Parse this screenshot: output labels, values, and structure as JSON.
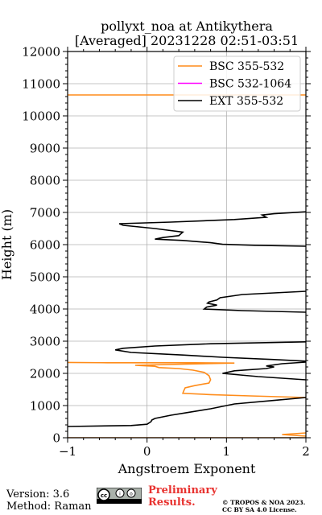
{
  "header": {
    "title_line1": "pollyxt_noa at Antikythera",
    "title_line2": "[Averaged] 20231228 02:51-03:51"
  },
  "footer": {
    "version": "Version: 3.6",
    "method": "Method: Raman",
    "preliminary_line1": "Preliminary",
    "preliminary_line2": "Results.",
    "copyright_line1": "© TROPOS & NOA 2023.",
    "copyright_line2": "CC BY SA 4.0 License.",
    "license_badge": "cc-by-sa-badge"
  },
  "chart_data": {
    "type": "line",
    "title": "pollyxt_noa at Antikythera",
    "subtitle": "[Averaged] 20231228 02:51-03:51",
    "xlabel": "Angstroem Exponent",
    "ylabel": "Height (m)",
    "xlim": [
      -1,
      2
    ],
    "ylim": [
      0,
      12000
    ],
    "xticks": [
      -1,
      0,
      1,
      2
    ],
    "yticks": [
      0,
      1000,
      2000,
      3000,
      4000,
      5000,
      6000,
      7000,
      8000,
      9000,
      10000,
      11000,
      12000
    ],
    "grid": true,
    "legend_position": "top-right",
    "series": [
      {
        "name": "BSC 355-532",
        "color": "#ff8c1a",
        "points": [
          [
            2.0,
            10650
          ],
          [
            -1.0,
            10650
          ],
          null,
          [
            -1.0,
            0
          ],
          [
            2.0,
            0
          ],
          null,
          [
            2.0,
            150
          ],
          [
            1.7,
            100
          ],
          [
            2.0,
            50
          ],
          null,
          [
            2.0,
            1250
          ],
          [
            1.3,
            1300
          ],
          [
            0.8,
            1340
          ],
          [
            0.45,
            1380
          ],
          [
            0.46,
            1450
          ],
          [
            0.48,
            1550
          ],
          [
            0.6,
            1620
          ],
          [
            0.78,
            1700
          ],
          [
            0.8,
            1800
          ],
          [
            0.78,
            1930
          ],
          [
            0.72,
            2030
          ],
          [
            0.58,
            2100
          ],
          [
            0.4,
            2150
          ],
          [
            0.15,
            2180
          ],
          [
            0.1,
            2220
          ],
          [
            -0.15,
            2250
          ],
          [
            0.5,
            2290
          ],
          [
            1.1,
            2320
          ],
          [
            0.6,
            2330
          ],
          [
            -0.5,
            2330
          ],
          [
            -1.0,
            2340
          ]
        ]
      },
      {
        "name": "BSC 532-1064",
        "color": "#ff00ff",
        "points": []
      },
      {
        "name": "EXT 355-532",
        "color": "#000000",
        "points": [
          [
            -1.0,
            350
          ],
          [
            -0.2,
            380
          ],
          [
            0.0,
            420
          ],
          [
            0.05,
            500
          ],
          [
            0.06,
            550
          ],
          [
            0.1,
            600
          ],
          [
            0.3,
            700
          ],
          [
            0.5,
            780
          ],
          [
            0.8,
            900
          ],
          [
            1.1,
            1050
          ],
          [
            1.6,
            1160
          ],
          [
            2.0,
            1250
          ],
          null,
          [
            2.0,
            1800
          ],
          [
            1.4,
            1900
          ],
          [
            0.95,
            2000
          ],
          [
            1.1,
            2080
          ],
          [
            1.5,
            2150
          ],
          [
            1.6,
            2200
          ],
          [
            1.5,
            2230
          ],
          [
            1.7,
            2300
          ],
          [
            2.0,
            2350
          ],
          null,
          [
            2.0,
            2380
          ],
          [
            1.6,
            2430
          ],
          [
            0.95,
            2500
          ],
          [
            0.45,
            2570
          ],
          [
            -0.2,
            2650
          ],
          [
            -0.4,
            2730
          ],
          [
            -0.3,
            2780
          ],
          [
            0.1,
            2850
          ],
          [
            0.8,
            2920
          ],
          [
            2.0,
            2980
          ],
          null,
          [
            2.0,
            3900
          ],
          [
            1.2,
            3950
          ],
          [
            0.72,
            4000
          ],
          [
            0.75,
            4060
          ],
          [
            0.88,
            4120
          ],
          [
            0.76,
            4180
          ],
          [
            0.78,
            4220
          ],
          [
            0.88,
            4280
          ],
          [
            0.92,
            4350
          ],
          [
            1.2,
            4450
          ],
          [
            2.0,
            4550
          ],
          null,
          [
            2.0,
            5950
          ],
          [
            1.35,
            5980
          ],
          [
            0.95,
            6010
          ],
          [
            0.8,
            6060
          ],
          [
            0.45,
            6130
          ],
          [
            0.1,
            6170
          ],
          [
            0.2,
            6220
          ],
          [
            0.4,
            6280
          ],
          [
            0.45,
            6390
          ],
          [
            0.1,
            6500
          ],
          [
            -0.3,
            6600
          ],
          [
            -0.35,
            6650
          ],
          [
            0.3,
            6700
          ],
          [
            1.1,
            6780
          ],
          [
            1.5,
            6850
          ],
          [
            1.45,
            6920
          ],
          [
            1.6,
            6960
          ],
          [
            2.0,
            7020
          ]
        ]
      }
    ]
  }
}
